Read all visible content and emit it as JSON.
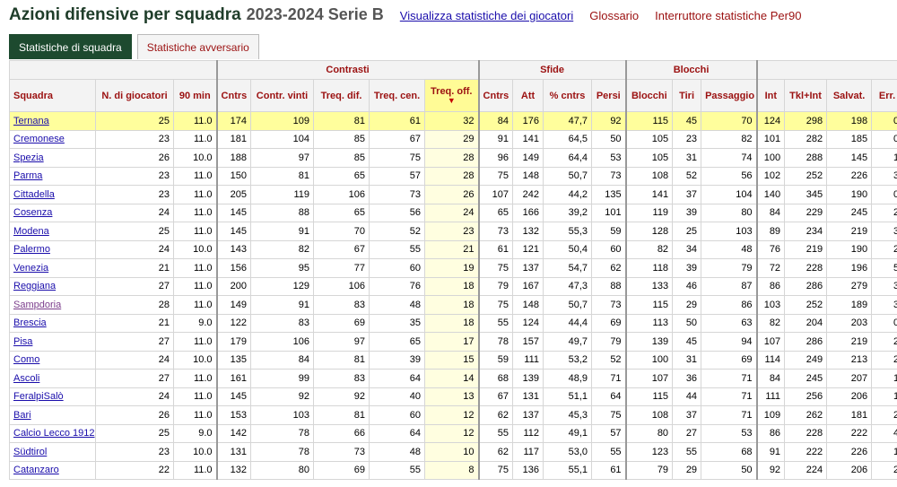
{
  "header": {
    "title": "Azioni difensive per squadra",
    "season": "2023-2024 Serie B",
    "links": [
      {
        "label": "Visualizza statistiche dei giocatori",
        "style": "blue"
      },
      {
        "label": "Glossario",
        "style": "red"
      },
      {
        "label": "Interruttore statistiche Per90",
        "style": "red"
      }
    ]
  },
  "tabs": [
    {
      "label": "Statistiche di squadra",
      "active": true
    },
    {
      "label": "Statistiche avversario",
      "active": false
    }
  ],
  "groups": {
    "contrasti": "Contrasti",
    "sfide": "Sfide",
    "blocchi": "Blocchi"
  },
  "columns": [
    "Squadra",
    "N. di giocatori",
    "90 min",
    "Cntrs",
    "Contr. vinti",
    "Treq. dif.",
    "Treq. cen.",
    "Treq. off.",
    "Cntrs",
    "Att",
    "% cntrs",
    "Persi",
    "Blocchi",
    "Tiri",
    "Passaggio",
    "Int",
    "Tkl+Int",
    "Salvat.",
    "Err."
  ],
  "sort_indicator": "▼",
  "colors": {
    "highlight": "#fffe9c",
    "sorted_column": "#fffee0",
    "link": "#1a0dab",
    "accent_red": "#9b1111",
    "tab_active": "#1d4a2f"
  },
  "rows": [
    [
      "Ternana",
      "25",
      "11.0",
      "174",
      "109",
      "81",
      "61",
      "32",
      "84",
      "176",
      "47,7",
      "92",
      "115",
      "45",
      "70",
      "124",
      "298",
      "198",
      "0"
    ],
    [
      "Cremonese",
      "23",
      "11.0",
      "181",
      "104",
      "85",
      "67",
      "29",
      "91",
      "141",
      "64,5",
      "50",
      "105",
      "23",
      "82",
      "101",
      "282",
      "185",
      "0"
    ],
    [
      "Spezia",
      "26",
      "10.0",
      "188",
      "97",
      "85",
      "75",
      "28",
      "96",
      "149",
      "64,4",
      "53",
      "105",
      "31",
      "74",
      "100",
      "288",
      "145",
      "1"
    ],
    [
      "Parma",
      "23",
      "11.0",
      "150",
      "81",
      "65",
      "57",
      "28",
      "75",
      "148",
      "50,7",
      "73",
      "108",
      "52",
      "56",
      "102",
      "252",
      "226",
      "3"
    ],
    [
      "Cittadella",
      "23",
      "11.0",
      "205",
      "119",
      "106",
      "73",
      "26",
      "107",
      "242",
      "44,2",
      "135",
      "141",
      "37",
      "104",
      "140",
      "345",
      "190",
      "0"
    ],
    [
      "Cosenza",
      "24",
      "11.0",
      "145",
      "88",
      "65",
      "56",
      "24",
      "65",
      "166",
      "39,2",
      "101",
      "119",
      "39",
      "80",
      "84",
      "229",
      "245",
      "2"
    ],
    [
      "Modena",
      "25",
      "11.0",
      "145",
      "91",
      "70",
      "52",
      "23",
      "73",
      "132",
      "55,3",
      "59",
      "128",
      "25",
      "103",
      "89",
      "234",
      "219",
      "3"
    ],
    [
      "Palermo",
      "24",
      "10.0",
      "143",
      "82",
      "67",
      "55",
      "21",
      "61",
      "121",
      "50,4",
      "60",
      "82",
      "34",
      "48",
      "76",
      "219",
      "190",
      "2"
    ],
    [
      "Venezia",
      "21",
      "11.0",
      "156",
      "95",
      "77",
      "60",
      "19",
      "75",
      "137",
      "54,7",
      "62",
      "118",
      "39",
      "79",
      "72",
      "228",
      "196",
      "5"
    ],
    [
      "Reggiana",
      "27",
      "11.0",
      "200",
      "129",
      "106",
      "76",
      "18",
      "79",
      "167",
      "47,3",
      "88",
      "133",
      "46",
      "87",
      "86",
      "286",
      "279",
      "3"
    ],
    [
      "Sampdoria",
      "28",
      "11.0",
      "149",
      "91",
      "83",
      "48",
      "18",
      "75",
      "148",
      "50,7",
      "73",
      "115",
      "29",
      "86",
      "103",
      "252",
      "189",
      "3"
    ],
    [
      "Brescia",
      "21",
      "9.0",
      "122",
      "83",
      "69",
      "35",
      "18",
      "55",
      "124",
      "44,4",
      "69",
      "113",
      "50",
      "63",
      "82",
      "204",
      "203",
      "0"
    ],
    [
      "Pisa",
      "27",
      "11.0",
      "179",
      "106",
      "97",
      "65",
      "17",
      "78",
      "157",
      "49,7",
      "79",
      "139",
      "45",
      "94",
      "107",
      "286",
      "219",
      "2"
    ],
    [
      "Como",
      "24",
      "10.0",
      "135",
      "84",
      "81",
      "39",
      "15",
      "59",
      "111",
      "53,2",
      "52",
      "100",
      "31",
      "69",
      "114",
      "249",
      "213",
      "2"
    ],
    [
      "Ascoli",
      "27",
      "11.0",
      "161",
      "99",
      "83",
      "64",
      "14",
      "68",
      "139",
      "48,9",
      "71",
      "107",
      "36",
      "71",
      "84",
      "245",
      "207",
      "1"
    ],
    [
      "FeralpiSalò",
      "24",
      "11.0",
      "145",
      "92",
      "92",
      "40",
      "13",
      "67",
      "131",
      "51,1",
      "64",
      "115",
      "44",
      "71",
      "111",
      "256",
      "206",
      "1"
    ],
    [
      "Bari",
      "26",
      "11.0",
      "153",
      "103",
      "81",
      "60",
      "12",
      "62",
      "137",
      "45,3",
      "75",
      "108",
      "37",
      "71",
      "109",
      "262",
      "181",
      "2"
    ],
    [
      "Calcio Lecco 1912",
      "25",
      "9.0",
      "142",
      "78",
      "66",
      "64",
      "12",
      "55",
      "112",
      "49,1",
      "57",
      "80",
      "27",
      "53",
      "86",
      "228",
      "222",
      "4"
    ],
    [
      "Südtirol",
      "23",
      "10.0",
      "131",
      "78",
      "73",
      "48",
      "10",
      "62",
      "117",
      "53,0",
      "55",
      "123",
      "55",
      "68",
      "91",
      "222",
      "226",
      "1"
    ],
    [
      "Catanzaro",
      "22",
      "11.0",
      "132",
      "80",
      "69",
      "55",
      "8",
      "75",
      "136",
      "55,1",
      "61",
      "79",
      "29",
      "50",
      "92",
      "224",
      "206",
      "2"
    ]
  ],
  "highlight_row": 0,
  "visited_row": 10,
  "sorted_col": 7
}
